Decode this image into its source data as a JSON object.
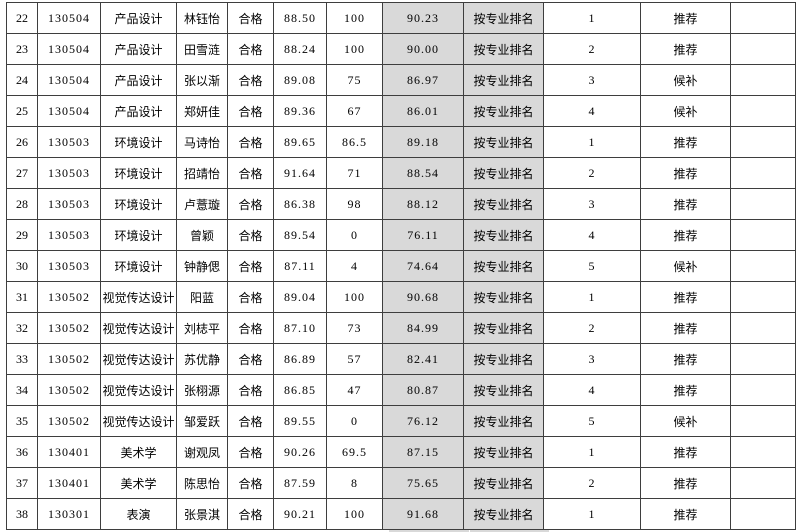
{
  "colors": {
    "page_bg": "#ffffff",
    "grid_border": "#3e3e3e",
    "highlight_bg": "#d9d9d9",
    "text": "#000000"
  },
  "table": {
    "highlighted_column_indices": [
      7,
      8
    ],
    "rows": [
      [
        "22",
        "130504",
        "产品设计",
        "林钰怡",
        "合格",
        "88.50",
        "100",
        "90.23",
        "按专业排名",
        "1",
        "推荐",
        ""
      ],
      [
        "23",
        "130504",
        "产品设计",
        "田雪涟",
        "合格",
        "88.24",
        "100",
        "90.00",
        "按专业排名",
        "2",
        "推荐",
        ""
      ],
      [
        "24",
        "130504",
        "产品设计",
        "张以渐",
        "合格",
        "89.08",
        "75",
        "86.97",
        "按专业排名",
        "3",
        "候补",
        ""
      ],
      [
        "25",
        "130504",
        "产品设计",
        "郑妍佳",
        "合格",
        "89.36",
        "67",
        "86.01",
        "按专业排名",
        "4",
        "候补",
        ""
      ],
      [
        "26",
        "130503",
        "环境设计",
        "马诗怡",
        "合格",
        "89.65",
        "86.5",
        "89.18",
        "按专业排名",
        "1",
        "推荐",
        ""
      ],
      [
        "27",
        "130503",
        "环境设计",
        "招靖怡",
        "合格",
        "91.64",
        "71",
        "88.54",
        "按专业排名",
        "2",
        "推荐",
        ""
      ],
      [
        "28",
        "130503",
        "环境设计",
        "卢薏璇",
        "合格",
        "86.38",
        "98",
        "88.12",
        "按专业排名",
        "3",
        "推荐",
        ""
      ],
      [
        "29",
        "130503",
        "环境设计",
        "曾颖",
        "合格",
        "89.54",
        "0",
        "76.11",
        "按专业排名",
        "4",
        "推荐",
        ""
      ],
      [
        "30",
        "130503",
        "环境设计",
        "钟静偲",
        "合格",
        "87.11",
        "4",
        "74.64",
        "按专业排名",
        "5",
        "候补",
        ""
      ],
      [
        "31",
        "130502",
        "视觉传达设计",
        "阳蓝",
        "合格",
        "89.04",
        "100",
        "90.68",
        "按专业排名",
        "1",
        "推荐",
        ""
      ],
      [
        "32",
        "130502",
        "视觉传达设计",
        "刘梽平",
        "合格",
        "87.10",
        "73",
        "84.99",
        "按专业排名",
        "2",
        "推荐",
        ""
      ],
      [
        "33",
        "130502",
        "视觉传达设计",
        "苏优静",
        "合格",
        "86.89",
        "57",
        "82.41",
        "按专业排名",
        "3",
        "推荐",
        ""
      ],
      [
        "34",
        "130502",
        "视觉传达设计",
        "张栩源",
        "合格",
        "86.85",
        "47",
        "80.87",
        "按专业排名",
        "4",
        "推荐",
        ""
      ],
      [
        "35",
        "130502",
        "视觉传达设计",
        "邹爱跃",
        "合格",
        "89.55",
        "0",
        "76.12",
        "按专业排名",
        "5",
        "候补",
        ""
      ],
      [
        "36",
        "130401",
        "美术学",
        "谢观凤",
        "合格",
        "90.26",
        "69.5",
        "87.15",
        "按专业排名",
        "1",
        "推荐",
        ""
      ],
      [
        "37",
        "130401",
        "美术学",
        "陈思怡",
        "合格",
        "87.59",
        "8",
        "75.65",
        "按专业排名",
        "2",
        "推荐",
        ""
      ],
      [
        "38",
        "130301",
        "表演",
        "张景淇",
        "合格",
        "90.21",
        "100",
        "91.68",
        "按专业排名",
        "1",
        "推荐",
        ""
      ]
    ]
  }
}
